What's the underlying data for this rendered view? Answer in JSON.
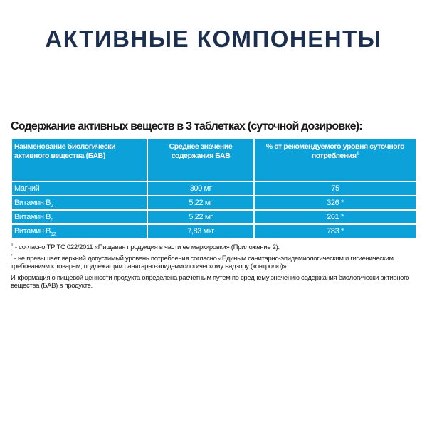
{
  "title": "АКТИВНЫЕ КОМПОНЕНТЫ",
  "subtitle": "Содержание активных веществ в 3 таблетках (суточной дозировке):",
  "colors": {
    "title": "#1d2f4e",
    "table_bg": "#0ca2d9"
  },
  "table": {
    "headers": [
      "Наименование биологически активного вещества (БАВ)",
      "Среднее значение содержания БАВ",
      "% от рекомендуемого уровня суточного потребления",
      "1"
    ],
    "rows": [
      {
        "name": "Магний",
        "sub": "",
        "amount": "300 мг",
        "percent": "75"
      },
      {
        "name": "Витамин B",
        "sub": "2",
        "amount": "5,22 мг",
        "percent": "326 *"
      },
      {
        "name": "Витамин B",
        "sub": "6",
        "amount": "5,22 мг",
        "percent": "261 *"
      },
      {
        "name": "Витамин B",
        "sub": "12",
        "amount": "7,83 мкг",
        "percent": "783 *"
      }
    ]
  },
  "notes": [
    {
      "mark": "1",
      "text": " - согласно ТР ТС 022/2011 «Пищевая продукция в части ее маркировки» (Приложение 2)."
    },
    {
      "mark": "*",
      "text": " - не превышает верхний допустимый уровень потребления согласно «Единым санитарно-эпидемиологическим и гигиеническим требованиям к товарам, подлежащим санитарно-эпидемиологическому надзору (контролю)»."
    },
    {
      "mark": "",
      "text": "Информация о пищевой ценности продукта определена расчетным путем по среднему значению содержания биологически активного вещества (БАВ) в продукте."
    }
  ]
}
